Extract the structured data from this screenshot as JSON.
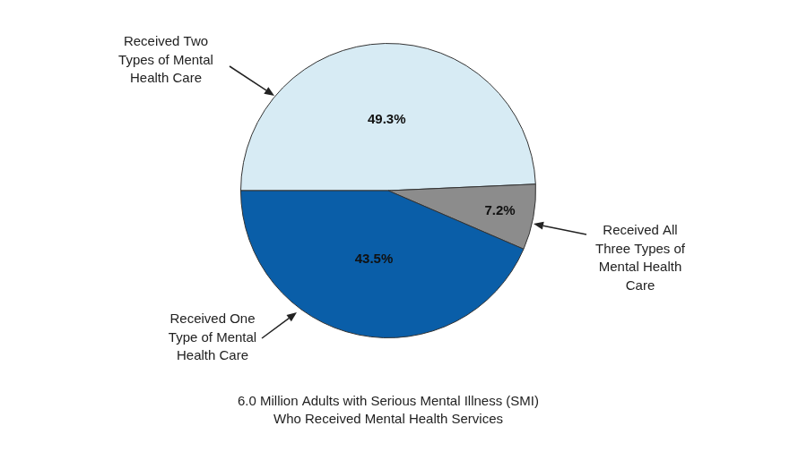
{
  "chart_data": {
    "type": "pie",
    "title": [
      "6.0 Million Adults with Serious Mental Illness (SMI)",
      "Who Received Mental Health Services"
    ],
    "categories": [
      [
        "Received Two",
        "Types of Mental",
        "Health Care"
      ],
      [
        "Received All",
        "Three Types of",
        "Mental Health",
        "Care"
      ],
      [
        "Received One",
        "Type of Mental",
        "Health Care"
      ]
    ],
    "values": [
      49.3,
      7.2,
      43.5
    ],
    "value_labels": [
      "49.3%",
      "7.2%",
      "43.5%"
    ],
    "colors": [
      "#d7ebf4",
      "#8c8c8c",
      "#0a5ea8"
    ],
    "data_labels": true
  }
}
